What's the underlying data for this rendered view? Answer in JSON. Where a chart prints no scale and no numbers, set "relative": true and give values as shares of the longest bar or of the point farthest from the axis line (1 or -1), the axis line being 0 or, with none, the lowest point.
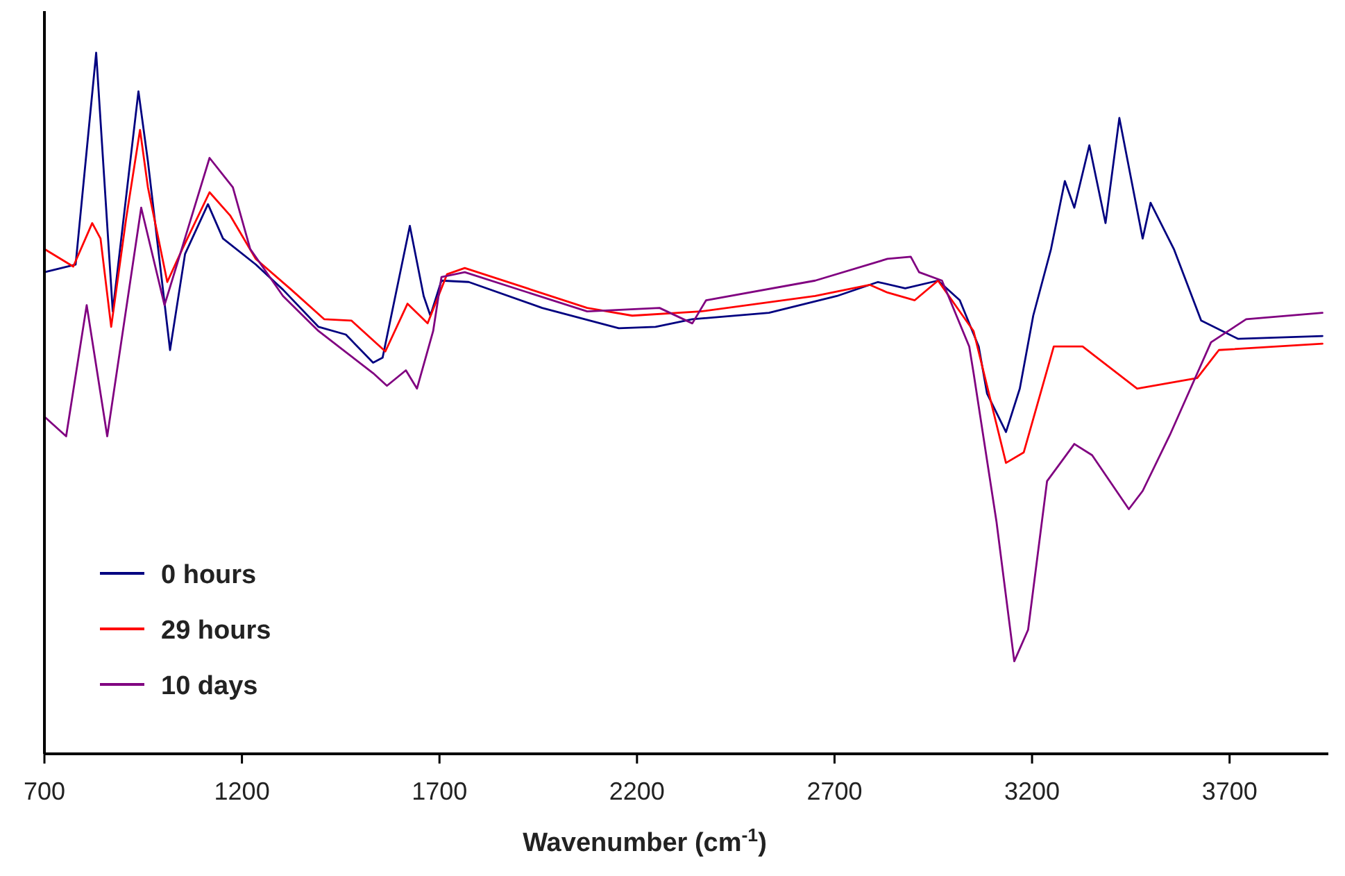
{
  "chart_data": {
    "type": "line",
    "xlabel": "Wavenumber (cm$^{-1}$)",
    "relative": true,
    "xlim": [
      700,
      3950
    ],
    "xticks": [
      700,
      1200,
      1700,
      2200,
      2700,
      3200,
      3700
    ],
    "tick_labels": "x",
    "grid": false,
    "legend": "bottom left",
    "marker": "none",
    "line_style": "solid",
    "series": [
      {
        "name": "0 hours",
        "color": "#000080",
        "x": [
          700,
          779,
          831,
          873,
          938,
          962,
          1018,
          1056,
          1114,
          1152,
          1235,
          1304,
          1394,
          1463,
          1532,
          1556,
          1625,
          1660,
          1677,
          1705,
          1774,
          1960,
          2154,
          2247,
          2340,
          2534,
          2706,
          2810,
          2879,
          2962,
          3017,
          3065,
          3086,
          3134,
          3169,
          3203,
          3248,
          3283,
          3307,
          3345,
          3386,
          3421,
          3480,
          3500,
          3559,
          3628,
          3721,
          3935
        ],
        "values": [
          0.687,
          0.698,
          1,
          0.631,
          0.945,
          0.845,
          0.576,
          0.713,
          0.784,
          0.735,
          0.698,
          0.662,
          0.609,
          0.598,
          0.558,
          0.565,
          0.753,
          0.653,
          0.625,
          0.675,
          0.673,
          0.636,
          0.607,
          0.609,
          0.62,
          0.629,
          0.653,
          0.673,
          0.664,
          0.675,
          0.647,
          0.581,
          0.514,
          0.459,
          0.521,
          0.625,
          0.72,
          0.817,
          0.779,
          0.868,
          0.757,
          0.907,
          0.735,
          0.786,
          0.72,
          0.618,
          0.592,
          0.596
        ]
      },
      {
        "name": "29 hours",
        "color": "#ff0000",
        "x": [
          700,
          773,
          821,
          842,
          869,
          907,
          942,
          962,
          1011,
          1049,
          1118,
          1170,
          1235,
          1325,
          1408,
          1477,
          1563,
          1619,
          1670,
          1719,
          1764,
          2074,
          2188,
          2361,
          2651,
          2789,
          2834,
          2903,
          2962,
          3052,
          3134,
          3179,
          3255,
          3328,
          3466,
          3618,
          3673,
          3935
        ],
        "values": [
          0.72,
          0.695,
          0.757,
          0.735,
          0.609,
          0.764,
          0.89,
          0.808,
          0.673,
          0.72,
          0.801,
          0.768,
          0.706,
          0.662,
          0.62,
          0.618,
          0.574,
          0.642,
          0.614,
          0.684,
          0.693,
          0.636,
          0.625,
          0.631,
          0.653,
          0.669,
          0.658,
          0.647,
          0.675,
          0.603,
          0.415,
          0.43,
          0.581,
          0.581,
          0.521,
          0.536,
          0.576,
          0.585
        ]
      },
      {
        "name": "10 days",
        "color": "#800080",
        "x": [
          700,
          755,
          807,
          859,
          945,
          1004,
          1118,
          1177,
          1221,
          1304,
          1394,
          1532,
          1567,
          1615,
          1643,
          1684,
          1705,
          1764,
          2074,
          2257,
          2340,
          2375,
          2651,
          2834,
          2893,
          2914,
          2972,
          3041,
          3052,
          3110,
          3155,
          3190,
          3238,
          3307,
          3352,
          3445,
          3480,
          3549,
          3653,
          3742,
          3935
        ],
        "values": [
          0.481,
          0.453,
          0.64,
          0.453,
          0.779,
          0.64,
          0.85,
          0.808,
          0.72,
          0.653,
          0.603,
          0.543,
          0.525,
          0.547,
          0.521,
          0.603,
          0.68,
          0.687,
          0.631,
          0.636,
          0.614,
          0.647,
          0.675,
          0.706,
          0.709,
          0.687,
          0.675,
          0.581,
          0.543,
          0.331,
          0.132,
          0.177,
          0.389,
          0.442,
          0.426,
          0.349,
          0.375,
          0.455,
          0.587,
          0.62,
          0.629
        ]
      }
    ]
  }
}
